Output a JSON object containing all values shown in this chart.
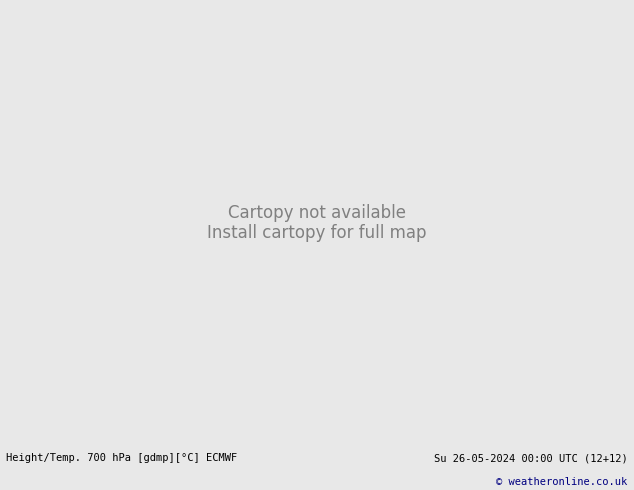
{
  "title_left": "Height/Temp. 700 hPa [gdmp][°C] ECMWF",
  "title_right": "Su 26-05-2024 00:00 UTC (12+12)",
  "copyright": "© weatheronline.co.uk",
  "bg_color": "#e8e8e8",
  "map_bg": "#d4d4d4",
  "land_color": "#d4d4d4",
  "ocean_color": "#d4d4d4",
  "green_fill": "#c8f0a0",
  "fig_width": 6.34,
  "fig_height": 4.9,
  "bottom_bar_color": "#f0f0f0",
  "bottom_bar_height": 0.09,
  "label_fontsize": 7.5,
  "copyright_fontsize": 7.5,
  "font_family": "monospace"
}
